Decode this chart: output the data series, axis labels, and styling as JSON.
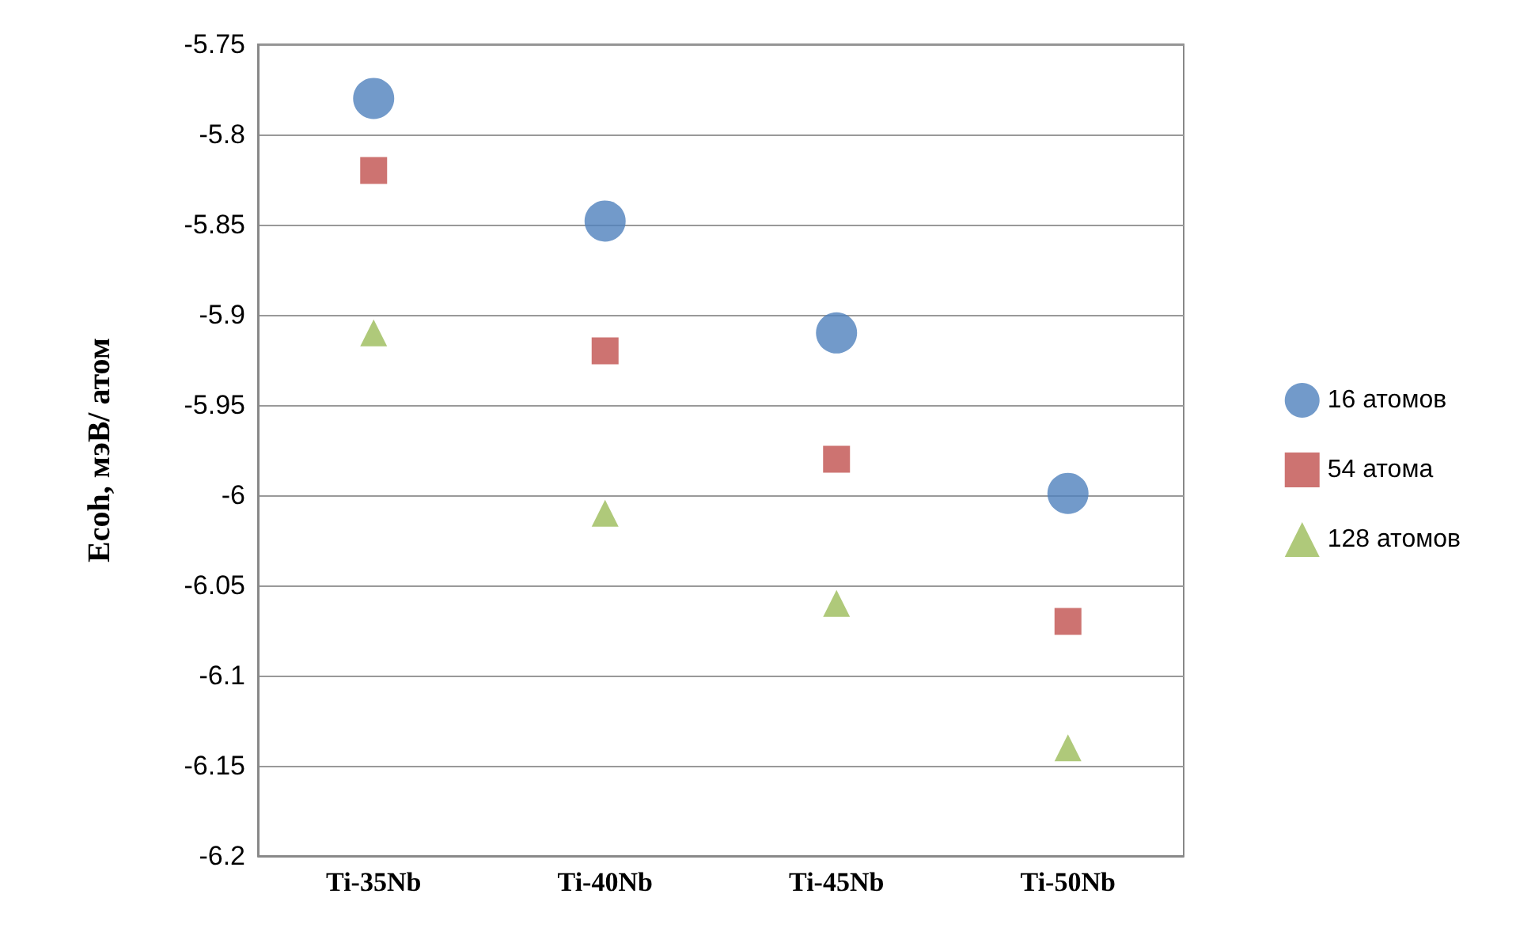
{
  "chart_data": {
    "type": "scatter",
    "ylabel": "Ecoh, мэВ/ атом",
    "categories": [
      "Ti-35Nb",
      "Ti-40Nb",
      "Ti-45Nb",
      "Ti-50Nb"
    ],
    "series": [
      {
        "name": "16 атомов",
        "color": "#4f81bd",
        "marker": "circle",
        "values": [
          -5.78,
          -5.848,
          -5.91,
          -5.999
        ]
      },
      {
        "name": "54 атома",
        "color": "#c0504d",
        "marker": "square",
        "values": [
          -5.82,
          -5.92,
          -5.98,
          -6.07
        ]
      },
      {
        "name": "128 атомов",
        "color": "#9bbb59",
        "marker": "triangle",
        "values": [
          -5.91,
          -6.01,
          -6.06,
          -6.14
        ]
      }
    ],
    "ylim": [
      -6.2,
      -5.75
    ],
    "yticks": [
      -6.2,
      -6.15,
      -6.1,
      -6.05,
      -6,
      -5.95,
      -5.9,
      -5.85,
      -5.8,
      -5.75
    ],
    "grid": "y",
    "legend": "right"
  }
}
